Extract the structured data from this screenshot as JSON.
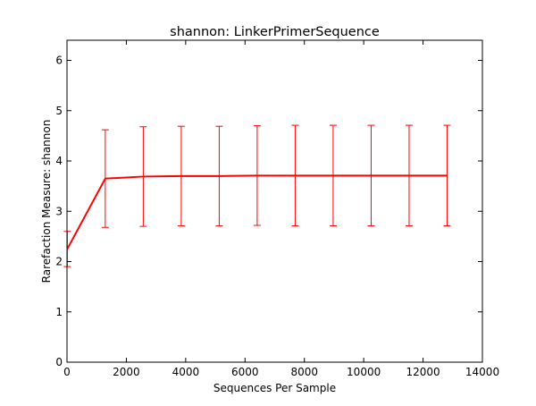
{
  "chart_data": {
    "type": "line",
    "title": "shannon: LinkerPrimerSequence",
    "xlabel": "Sequences Per Sample",
    "ylabel": "Rarefaction Measure: shannon",
    "xlim": [
      0,
      14000
    ],
    "ylim": [
      0,
      6.4
    ],
    "xticks": [
      0,
      2000,
      4000,
      6000,
      8000,
      10000,
      12000,
      14000
    ],
    "xtick_labels": [
      "0",
      "2000",
      "4000",
      "6000",
      "8000",
      "10000",
      "12000",
      "14000"
    ],
    "yticks": [
      0,
      1,
      2,
      3,
      4,
      5,
      6
    ],
    "ytick_labels": [
      "0",
      "1",
      "2",
      "3",
      "4",
      "5",
      "6"
    ],
    "grid": false,
    "legend": "none",
    "series": [
      {
        "color": "#ff0000",
        "x": [
          10,
          1290,
          2570,
          3850,
          5130,
          6410,
          7690,
          8970,
          10250,
          11530,
          12810
        ],
        "y": [
          2.25,
          3.65,
          3.69,
          3.7,
          3.7,
          3.71,
          3.71,
          3.71,
          3.71,
          3.71,
          3.71
        ],
        "err": [
          0.35,
          0.97,
          0.99,
          0.99,
          0.99,
          0.99,
          1.0,
          1.0,
          1.0,
          1.0,
          1.0
        ]
      }
    ]
  }
}
